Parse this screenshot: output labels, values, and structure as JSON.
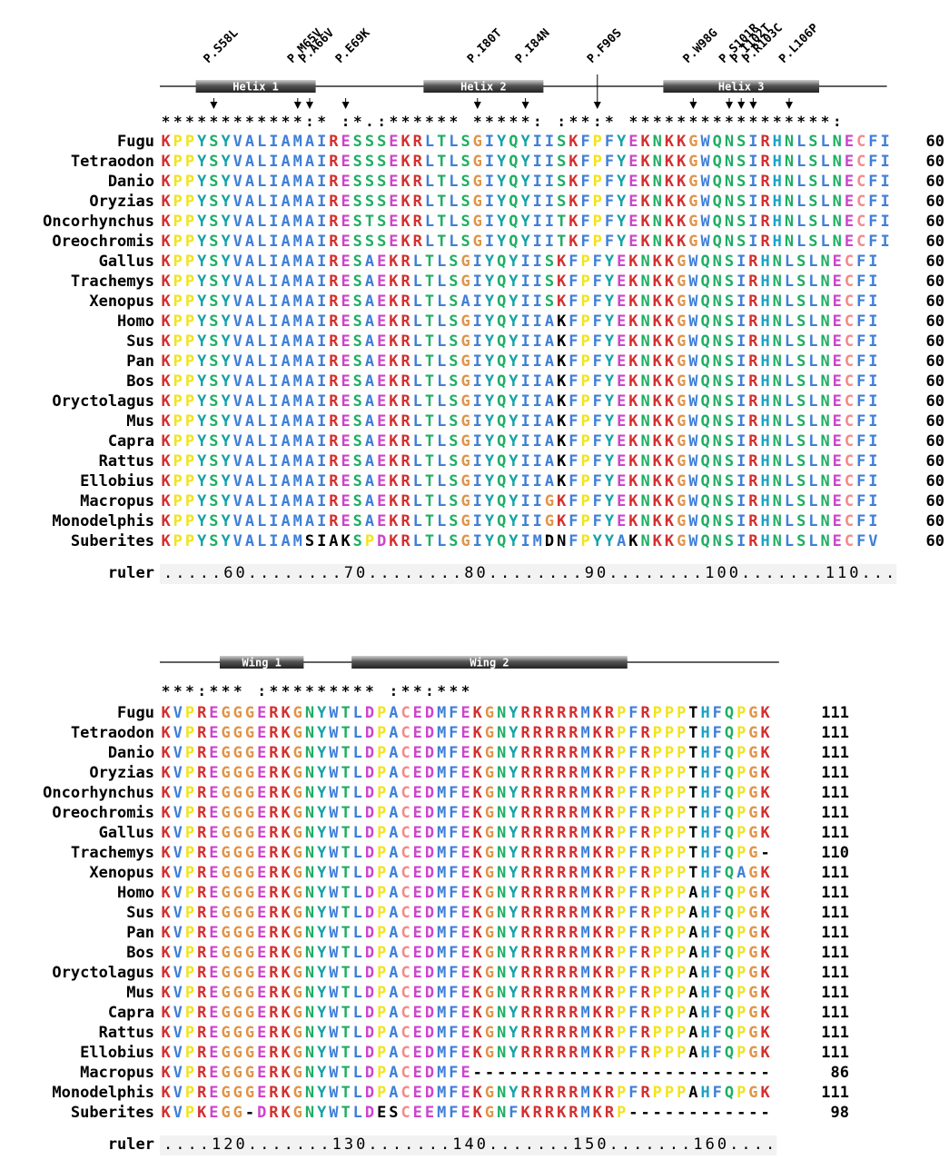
{
  "colors": {
    "K": "#d32f2f",
    "R": "#d32f2f",
    "H": "#1aa2c4",
    "D": "#cc44cc",
    "E": "#cc44cc",
    "A": "#3f7fd8",
    "V": "#3f7fd8",
    "L": "#3f7fd8",
    "I": "#3f7fd8",
    "M": "#3f7fd8",
    "F": "#3f7fd8",
    "W": "#3f7fd8",
    "C": "#f48a8a",
    "S": "#1fae63",
    "T": "#1fae63",
    "N": "#1fae63",
    "Q": "#1fae63",
    "G": "#e0944a",
    "P": "#f2e31a",
    "Y": "#16a2a8",
    "-": "#000000",
    "special": "#000000"
  },
  "block1": {
    "mutations": [
      {
        "label": "P.S58L",
        "col": 4
      },
      {
        "label": "P.M65V",
        "col": 11
      },
      {
        "label": "P.A66V",
        "col": 12
      },
      {
        "label": "P.E69K",
        "col": 15
      },
      {
        "label": "P.I80T",
        "col": 26
      },
      {
        "label": "P.I84N",
        "col": 30
      },
      {
        "label": "P.F90S",
        "col": 36
      },
      {
        "label": "P.W98G",
        "col": 44
      },
      {
        "label": "P.S101R",
        "col": 47
      },
      {
        "label": "P.I102T",
        "col": 48
      },
      {
        "label": "P.R103C",
        "col": 49
      },
      {
        "label": "P.L106P",
        "col": 52
      }
    ],
    "features": [
      {
        "label": "Helix 1",
        "start": 3,
        "end": 12
      },
      {
        "label": "Helix 2",
        "start": 22,
        "end": 31
      },
      {
        "label": "Helix 3",
        "start": 42,
        "end": 54
      }
    ],
    "conservation": "************:* :*.:****** *****: :**:* *****************:",
    "end_number": "60",
    "rows": [
      {
        "name": "Fugu",
        "seq": "KPPYSYVALIAMAIRESSSEKRLTLSGIYQYIISKFPFYEKNKKGWQNSIRHNLSLNECFI",
        "special": []
      },
      {
        "name": "Tetraodon",
        "seq": "KPPYSYVALIAMAIRESSSEKRLTLSGIYQYIISKFPFYEKNKKGWQNSIRHNLSLNECFI",
        "special": []
      },
      {
        "name": "Danio",
        "seq": "KPPYSYVALIAMAIRESSSEKRLTLSGIYQYIISKFPFYEKNKKGWQNSIRHNLSLNECFI",
        "special": []
      },
      {
        "name": "Oryzias",
        "seq": "KPPYSYVALIAMAIRESSSEKRLTLSGIYQYIISKFPFYEKNKKGWQNSIRHNLSLNECFI",
        "special": []
      },
      {
        "name": "Oncorhynchus",
        "seq": "KPPYSYVALIAMAIRESTSEKRLTLSGIYQYIITKFPFYEKNKKGWQNSIRHNLSLNECFI",
        "special": []
      },
      {
        "name": "Oreochromis",
        "seq": "KPPYSYVALIAMAIRESSSEKRLTLSGIYQYIITKFPFYEKNKKGWQNSIRHNLSLNECFI",
        "special": []
      },
      {
        "name": "Gallus",
        "seq": "KPPYSYVALIAMAIRESAEKRLTLSGIYQYIISKFPFYEKNKKGWQNSIRHNLSLNECFI",
        "special": []
      },
      {
        "name": "Trachemys",
        "seq": "KPPYSYVALIAMAIRESAEKRLTLSGIYQYIISKFPFYEKNKKGWQNSIRHNLSLNECFI",
        "special": []
      },
      {
        "name": "Xenopus",
        "seq": "KPPYSYVALIAMAIRESAEKRLTLSAIYQYIISKFPFYEKNKKGWQNSIRHNLSLNECFI",
        "special": []
      },
      {
        "name": "Homo",
        "seq": "KPPYSYVALIAMAIRESAEKRLTLSGIYQYIIAKFPFYEKNKKGWQNSIRHNLSLNECFI",
        "special": [
          33
        ]
      },
      {
        "name": "Sus",
        "seq": "KPPYSYVALIAMAIRESAEKRLTLSGIYQYIIAKFPFYEKNKKGWQNSIRHNLSLNECFI",
        "special": [
          33
        ]
      },
      {
        "name": "Pan",
        "seq": "KPPYSYVALIAMAIRESAEKRLTLSGIYQYIIAKFPFYEKNKKGWQNSIRHNLSLNECFI",
        "special": [
          33
        ]
      },
      {
        "name": "Bos",
        "seq": "KPPYSYVALIAMAIRESAEKRLTLSGIYQYIIAKFPFYEKNKKGWQNSIRHNLSLNECFI",
        "special": [
          33
        ]
      },
      {
        "name": "Oryctolagus",
        "seq": "KPPYSYVALIAMAIRESAEKRLTLSGIYQYIIAKFPFYEKNKKGWQNSIRHNLSLNECFI",
        "special": [
          33
        ]
      },
      {
        "name": "Mus",
        "seq": "KPPYSYVALIAMAIRESAEKRLTLSGIYQYIIAKFPFYEKNKKGWQNSIRHNLSLNECFI",
        "special": [
          33
        ]
      },
      {
        "name": "Capra",
        "seq": "KPPYSYVALIAMAIRESAEKRLTLSGIYQYIIAKFPFYEKNKKGWQNSIRHNLSLNECFI",
        "special": [
          33
        ]
      },
      {
        "name": "Rattus",
        "seq": "KPPYSYVALIAMAIRESAEKRLTLSGIYQYIIAKFPFYEKNKKGWQNSIRHNLSLNECFI",
        "special": [
          33
        ]
      },
      {
        "name": "Ellobius",
        "seq": "KPPYSYVALIAMAIRESAEKRLTLSGIYQYIIAKFPFYEKNKKGWQNSIRHNLSLNECFI",
        "special": [
          33
        ]
      },
      {
        "name": "Macropus",
        "seq": "KPPYSYVALIAMAIRESAEKRLTLSGIYQYIIGKFPFYEKNKKGWQNSIRHNLSLNECFI",
        "special": []
      },
      {
        "name": "Monodelphis",
        "seq": "KPPYSYVALIAMAIRESAEKRLTLSGIYQYIIGKFPFYEKNKKGWQNSIRHNLSLNECFI",
        "special": []
      },
      {
        "name": "Suberites",
        "seq": "KPPYSYVALIAMSIAKSPDKRLTLSGIYQYIMDNFPYYAKNKKGWQNSIRHNLSLNECFV",
        "special": [
          12,
          13,
          14,
          15,
          32,
          33,
          39
        ]
      }
    ],
    "ruler_label": "ruler",
    "ruler": ".....60........70........80........90........100.......110..."
  },
  "block2": {
    "features": [
      {
        "label": "Wing 1",
        "start": 5,
        "end": 11
      },
      {
        "label": "Wing 2",
        "start": 16,
        "end": 38
      }
    ],
    "conservation": "***:*** :********* :**:***",
    "rows": [
      {
        "name": "Fugu",
        "seq": "KVPREGGGERKGNYWTLDPACEDMFEKGNYRRRRRMKRPFRPPPTHFQPGK",
        "num": "111",
        "special": [
          44
        ]
      },
      {
        "name": "Tetraodon",
        "seq": "KVPREGGGERKGNYWTLDPACEDMFEKGNYRRRRRMKRPFRPPPTHFQPGK",
        "num": "111",
        "special": [
          44
        ]
      },
      {
        "name": "Danio",
        "seq": "KVPREGGGERKGNYWTLDPACEDMFEKGNYRRRRRMKRPFRPPPTHFQPGK",
        "num": "111",
        "special": [
          44
        ]
      },
      {
        "name": "Oryzias",
        "seq": "KVPREGGGERKGNYWTLDPACEDMFEKGNYRRRRRMKRPFRPPPTHFQPGK",
        "num": "111",
        "special": [
          44
        ]
      },
      {
        "name": "Oncorhynchus",
        "seq": "KVPREGGGERKGNYWTLDPACEDMFEKGNYRRRRRMKRPFRPPPTHFQPGK",
        "num": "111",
        "special": [
          44
        ]
      },
      {
        "name": "Oreochromis",
        "seq": "KVPREGGGERKGNYWTLDPACEDMFEKGNYRRRRRMKRPFRPPPTHFQPGK",
        "num": "111",
        "special": [
          44
        ]
      },
      {
        "name": "Gallus",
        "seq": "KVPREGGGERKGNYWTLDPACEDMFEKGNYRRRRRMKRPFRPPPTHFQPGK",
        "num": "111",
        "special": [
          44
        ]
      },
      {
        "name": "Trachemys",
        "seq": "KVPREGGGERKGNYWTLDPACEDMFEKGNYRRRRRMKRPFRPPPTHFQPG-",
        "num": "110",
        "special": [
          44
        ]
      },
      {
        "name": "Xenopus",
        "seq": "KVPREGGGERKGNYWTLDPACEDMFEKGNYRRRRRMKRPFRPPPTHFQAGK",
        "num": "111",
        "special": [
          44
        ]
      },
      {
        "name": "Homo",
        "seq": "KVPREGGGERKGNYWTLDPACEDMFEKGNYRRRRRMKRPFRPPPAHFQPGK",
        "num": "111",
        "special": [
          44
        ]
      },
      {
        "name": "Sus",
        "seq": "KVPREGGGERKGNYWTLDPACEDMFEKGNYRRRRRMKRPFRPPPAHFQPGK",
        "num": "111",
        "special": [
          44
        ]
      },
      {
        "name": "Pan",
        "seq": "KVPREGGGERKGNYWTLDPACEDMFEKGNYRRRRRMKRPFRPPPAHFQPGK",
        "num": "111",
        "special": [
          44
        ]
      },
      {
        "name": "Bos",
        "seq": "KVPREGGGERKGNYWTLDPACEDMFEKGNYRRRRRMKRPFRPPPAHFQPGK",
        "num": "111",
        "special": [
          44
        ]
      },
      {
        "name": "Oryctolagus",
        "seq": "KVPREGGGERKGNYWTLDPACEDMFEKGNYRRRRRMKRPFRPPPAHFQPGK",
        "num": "111",
        "special": [
          44
        ]
      },
      {
        "name": "Mus",
        "seq": "KVPREGGGERKGNYWTLDPACEDMFEKGNYRRRRRMKRPFRPPPAHFQPGK",
        "num": "111",
        "special": [
          44
        ]
      },
      {
        "name": "Capra",
        "seq": "KVPREGGGERKGNYWTLDPACEDMFEKGNYRRRRRMKRPFRPPPAHFQPGK",
        "num": "111",
        "special": [
          44
        ]
      },
      {
        "name": "Rattus",
        "seq": "KVPREGGGERKGNYWTLDPACEDMFEKGNYRRRRRMKRPFRPPPAHFQPGK",
        "num": "111",
        "special": [
          44
        ]
      },
      {
        "name": "Ellobius",
        "seq": "KVPREGGGERKGNYWTLDPACEDMFEKGNYRRRRRMKRPFRPPPAHFQPGK",
        "num": "111",
        "special": [
          44
        ]
      },
      {
        "name": "Macropus",
        "seq": "KVPREGGGERKGNYWTLDPACEDMFE-------------------------",
        "num": "86",
        "special": []
      },
      {
        "name": "Monodelphis",
        "seq": "KVPREGGGERKGNYWTLDPACEDMFEKGNYRRRRRMKRPFRPPPAHFQPGK",
        "num": "111",
        "special": [
          44
        ]
      },
      {
        "name": "Suberites",
        "seq": "KVPKEGG-DRKGNYWTLDESCEEMFEKGNFKRRKRMKRP------------",
        "num": "98",
        "special": [
          18,
          19
        ]
      }
    ],
    "ruler_label": "ruler",
    "ruler": "....120.......130.......140.......150.......160...."
  }
}
